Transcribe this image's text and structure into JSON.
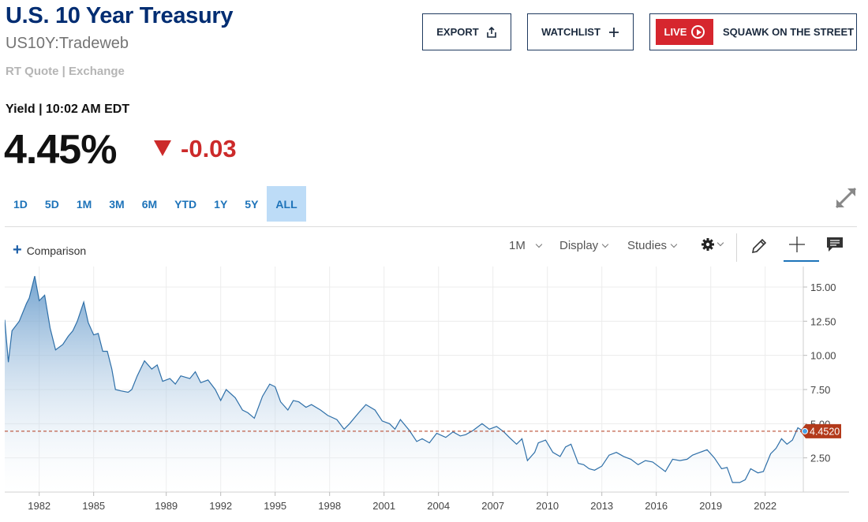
{
  "header": {
    "title": "U.S. 10 Year Treasury",
    "symbol": "US10Y:Tradeweb",
    "quote_source": "RT Quote | Exchange",
    "yield_label": "Yield | 10:02 AM EDT",
    "price": "4.45%",
    "change": "-0.03"
  },
  "actions": {
    "export_label": "EXPORT",
    "watchlist_label": "WATCHLIST",
    "live_label": "LIVE",
    "squawk_label": "SQUAWK ON THE STREET"
  },
  "ranges": [
    "1D",
    "5D",
    "1M",
    "3M",
    "6M",
    "YTD",
    "1Y",
    "5Y",
    "ALL"
  ],
  "active_range": "ALL",
  "toolbar": {
    "comparison_label": "Comparison",
    "interval_label": "1M",
    "display_label": "Display",
    "studies_label": "Studies"
  },
  "colors": {
    "brand_navy": "#002d72",
    "negative": "#cc2a2a",
    "line": "#2e6fa8",
    "current_marker": "#b33a1b"
  },
  "chart_data": {
    "type": "area",
    "x_ticks": [
      1982,
      1985,
      1989,
      1992,
      1995,
      1998,
      2001,
      2004,
      2007,
      2010,
      2013,
      2016,
      2019,
      2022
    ],
    "y_ticks": [
      2.5,
      5.0,
      7.5,
      10.0,
      12.5,
      15.0
    ],
    "y_tick_labels": [
      "2.50",
      "5.00",
      "7.50",
      "10.00",
      "12.50",
      "15.00"
    ],
    "xlim": [
      1980.1,
      2024.1
    ],
    "ylim": [
      0,
      16.5
    ],
    "current_value": 4.452,
    "current_label": "4.4520",
    "series": [
      {
        "x": [
          1980.1,
          1980.3,
          1980.5,
          1980.9,
          1981.3,
          1981.45,
          1981.75,
          1982.0,
          1982.3,
          1982.6,
          1982.9,
          1983.3,
          1983.6,
          1983.85,
          1984.1,
          1984.45,
          1984.7,
          1985.0,
          1985.25,
          1985.5,
          1985.75,
          1986.0,
          1986.2,
          1986.5,
          1986.9,
          1987.1,
          1987.4,
          1987.8,
          1988.2,
          1988.5,
          1988.8,
          1989.2,
          1989.5,
          1989.8,
          1990.3,
          1990.6,
          1990.9,
          1991.3,
          1991.7,
          1992.0,
          1992.3,
          1992.8,
          1993.2,
          1993.5,
          1993.85,
          1994.3,
          1994.7,
          1995.0,
          1995.3,
          1995.7,
          1996.0,
          1996.3,
          1996.7,
          1997.0,
          1997.5,
          1997.9,
          1998.4,
          1998.8,
          1999.1,
          1999.6,
          2000.0,
          2000.5,
          2000.9,
          2001.3,
          2001.6,
          2001.9,
          2002.4,
          2002.8,
          2003.1,
          2003.5,
          2003.9,
          2004.4,
          2004.8,
          2005.2,
          2005.5,
          2005.9,
          2006.4,
          2006.8,
          2007.2,
          2007.6,
          2007.9,
          2008.3,
          2008.6,
          2008.9,
          2009.3,
          2009.5,
          2009.9,
          2010.3,
          2010.7,
          2011.0,
          2011.3,
          2011.7,
          2012.0,
          2012.3,
          2012.6,
          2013.0,
          2013.4,
          2013.8,
          2014.2,
          2014.6,
          2015.0,
          2015.4,
          2015.8,
          2016.2,
          2016.5,
          2016.9,
          2017.3,
          2017.7,
          2018.0,
          2018.4,
          2018.8,
          2019.2,
          2019.6,
          2019.9,
          2020.2,
          2020.6,
          2020.9,
          2021.2,
          2021.6,
          2021.9,
          2022.3,
          2022.6,
          2022.9,
          2023.2,
          2023.5,
          2023.8,
          2024.1
        ],
        "y": [
          12.6,
          9.5,
          11.8,
          12.5,
          13.8,
          14.2,
          15.8,
          14.0,
          14.4,
          12.0,
          10.4,
          10.8,
          11.4,
          11.8,
          12.5,
          13.9,
          12.4,
          11.5,
          11.6,
          10.3,
          10.3,
          9.0,
          7.5,
          7.4,
          7.3,
          7.5,
          8.5,
          9.6,
          9.0,
          9.3,
          8.1,
          8.3,
          7.9,
          8.5,
          8.3,
          8.8,
          8.0,
          8.2,
          7.5,
          6.7,
          7.5,
          6.9,
          6.0,
          5.8,
          5.4,
          7.0,
          7.9,
          7.7,
          6.6,
          6.0,
          6.7,
          6.6,
          6.2,
          6.4,
          6.0,
          5.6,
          5.3,
          4.6,
          5.0,
          5.8,
          6.4,
          6.0,
          5.2,
          5.0,
          4.6,
          5.3,
          4.5,
          3.7,
          3.9,
          3.6,
          4.3,
          4.0,
          4.4,
          4.1,
          4.2,
          4.5,
          5.0,
          4.6,
          4.8,
          4.4,
          4.0,
          3.5,
          3.9,
          2.3,
          2.9,
          3.6,
          3.8,
          2.9,
          2.6,
          3.3,
          3.5,
          2.1,
          2.0,
          1.7,
          1.6,
          1.9,
          2.7,
          2.9,
          2.6,
          2.4,
          2.0,
          2.3,
          2.2,
          1.8,
          1.5,
          2.4,
          2.3,
          2.4,
          2.7,
          2.9,
          3.1,
          2.5,
          1.7,
          1.8,
          0.7,
          0.7,
          0.9,
          1.7,
          1.4,
          1.5,
          2.8,
          3.2,
          3.9,
          3.5,
          3.8,
          4.7,
          4.45
        ]
      }
    ]
  }
}
